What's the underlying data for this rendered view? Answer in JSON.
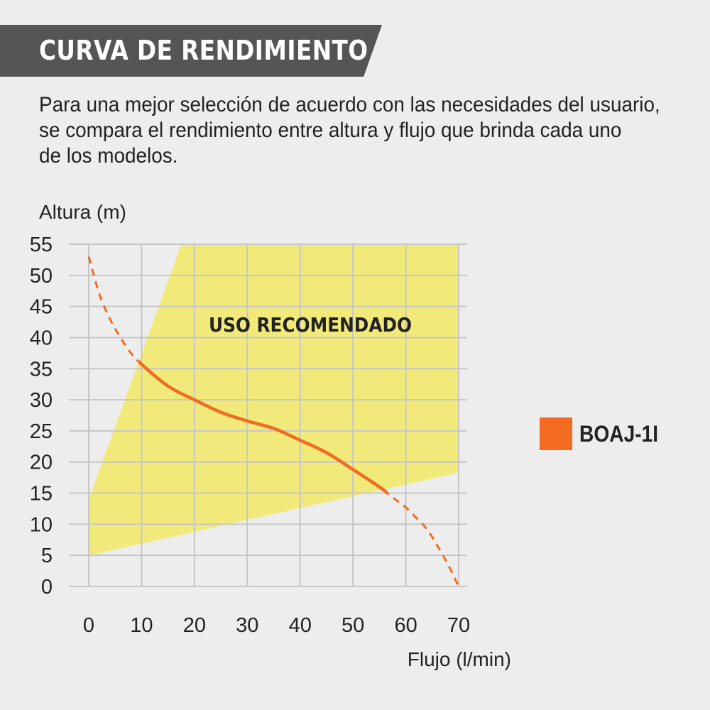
{
  "header": {
    "title": "CURVA DE RENDIMIENTO"
  },
  "intro": {
    "lines": [
      "Para una mejor selección de acuerdo con las necesidades del usuario,",
      "se compara el rendimiento entre altura y flujo que brinda cada uno",
      "de los modelos."
    ]
  },
  "colors": {
    "banner": "#555555",
    "zone": "#f1ea7a",
    "curve": "#f26b21",
    "grid": "#c6c6c6",
    "text": "#222222"
  },
  "chart_data": {
    "type": "line",
    "title": "",
    "xlabel": "Flujo (l/min)",
    "ylabel": "Altura (m)",
    "xlim": [
      0,
      70
    ],
    "ylim": [
      0,
      55
    ],
    "x_ticks": [
      0,
      10,
      20,
      30,
      40,
      50,
      60,
      70
    ],
    "y_ticks": [
      0,
      5,
      10,
      15,
      20,
      25,
      30,
      35,
      40,
      45,
      50,
      55
    ],
    "grid": true,
    "recommended_zone": {
      "label": "USO RECOMENDADO",
      "polygon": [
        [
          0,
          5
        ],
        [
          0,
          14
        ],
        [
          17.5,
          55
        ],
        [
          70,
          55
        ],
        [
          70,
          18.3
        ]
      ]
    },
    "series": [
      {
        "name": "BOAJ-1I",
        "solid_range": [
          9.5,
          56.5
        ],
        "x": [
          0,
          2,
          4,
          6,
          8,
          10,
          15,
          20,
          25,
          30,
          35,
          40,
          45,
          50,
          55,
          58,
          60,
          62,
          64,
          66,
          68,
          70
        ],
        "y": [
          53,
          47,
          43,
          40,
          37.5,
          35.7,
          32.2,
          30,
          28,
          26.6,
          25.4,
          23.5,
          21.5,
          18.8,
          16,
          14,
          12.7,
          11,
          9.2,
          6.5,
          3.5,
          0
        ]
      }
    ],
    "legend": {
      "position": "right",
      "entries": [
        "BOAJ-1I"
      ]
    }
  }
}
